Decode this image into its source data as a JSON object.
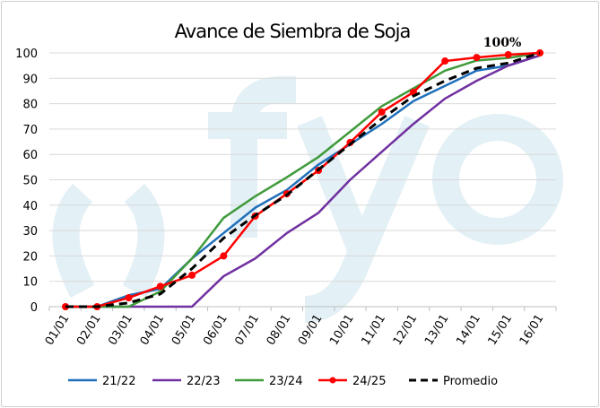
{
  "chart_data": {
    "type": "line",
    "title": "Avance de Siembra de Soja",
    "annotation": "100%",
    "watermark": "fyo",
    "xlabel": "",
    "ylabel": "",
    "ylim": [
      0,
      100
    ],
    "yticks": [
      0,
      10,
      20,
      30,
      40,
      50,
      60,
      70,
      80,
      90,
      100
    ],
    "categories": [
      "01/01",
      "02/01",
      "03/01",
      "04/01",
      "05/01",
      "06/01",
      "07/01",
      "08/01",
      "09/01",
      "10/01",
      "11/01",
      "12/01",
      "13/01",
      "14/01",
      "15/01",
      "16/01"
    ],
    "grid": true,
    "legend": "bottom",
    "series": [
      {
        "name": "21/22",
        "color": "#1f6fba",
        "dash": false,
        "markers": false,
        "values": [
          0,
          0,
          4.5,
          7,
          19,
          29,
          39,
          46,
          56,
          64,
          72,
          81,
          87,
          93,
          95,
          99
        ]
      },
      {
        "name": "22/23",
        "color": "#7030a0",
        "dash": false,
        "markers": false,
        "values": [
          0,
          0,
          0,
          0,
          0,
          12,
          19,
          29,
          37,
          50,
          61,
          72,
          82,
          89,
          95,
          99
        ]
      },
      {
        "name": "23/24",
        "color": "#3f9a3a",
        "dash": false,
        "markers": false,
        "values": [
          0,
          0,
          0,
          6,
          19,
          35,
          43.5,
          51,
          59,
          69,
          79,
          86,
          93,
          97,
          98,
          100
        ]
      },
      {
        "name": "24/25",
        "color": "#ff0000",
        "dash": false,
        "markers": true,
        "values": [
          0,
          0,
          3.5,
          8,
          12.4,
          20,
          35.7,
          44.5,
          53.7,
          64.7,
          76.7,
          84.5,
          96.8,
          98.2,
          99.3,
          100
        ]
      },
      {
        "name": "Promedio",
        "color": "#000000",
        "dash": true,
        "markers": false,
        "values": [
          0,
          0,
          1.5,
          5,
          15,
          27,
          36,
          44,
          54,
          64,
          74,
          83,
          89,
          94,
          96,
          100
        ]
      }
    ]
  }
}
